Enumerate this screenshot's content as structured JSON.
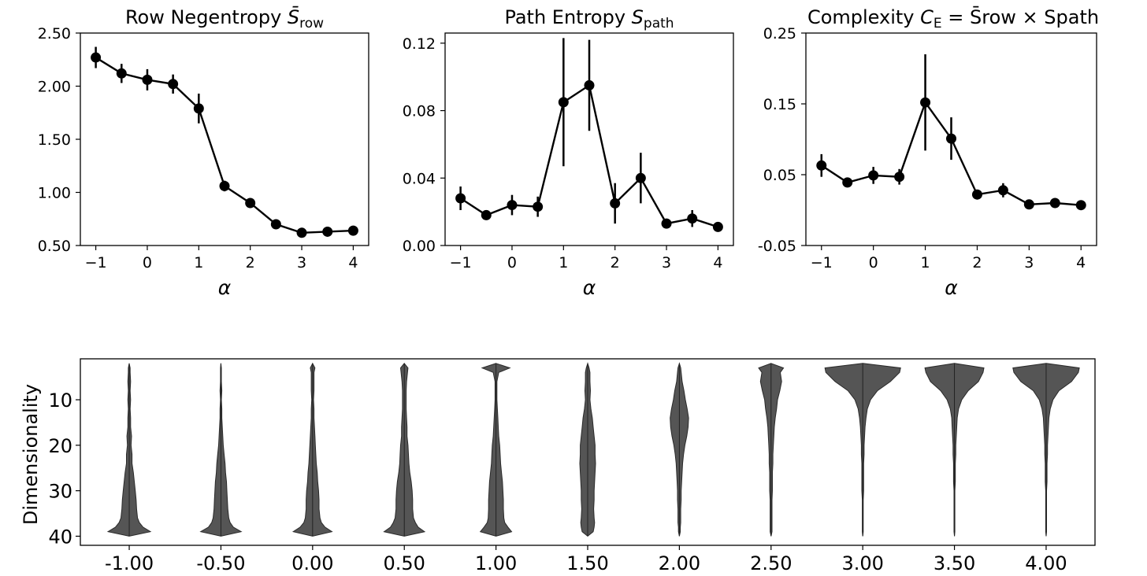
{
  "chart_data": [
    {
      "type": "line",
      "title": {
        "pre": "Row Negentropy ",
        "sym": "S̄",
        "sub": "row",
        "post": ""
      },
      "xlabel": "α",
      "x": [
        -1,
        -0.5,
        0,
        0.5,
        1,
        1.5,
        2,
        2.5,
        3,
        3.5,
        4
      ],
      "y": [
        2.27,
        2.12,
        2.06,
        2.02,
        1.79,
        1.06,
        0.9,
        0.7,
        0.62,
        0.63,
        0.64
      ],
      "err": [
        0.1,
        0.09,
        0.1,
        0.09,
        0.14,
        0.05,
        0.03,
        0.03,
        0.02,
        0.02,
        0.02
      ],
      "xlim": [
        -1.3,
        4.3
      ],
      "ylim": [
        0.5,
        2.5
      ],
      "xticks": [
        -1,
        0,
        1,
        2,
        3,
        4
      ],
      "xtick_labels": [
        "−1",
        "0",
        "1",
        "2",
        "3",
        "4"
      ],
      "yticks": [
        0.5,
        1.0,
        1.5,
        2.0,
        2.5
      ],
      "ytick_labels": [
        "0.50",
        "1.00",
        "1.50",
        "2.00",
        "2.50"
      ]
    },
    {
      "type": "line",
      "title": {
        "pre": "Path Entropy ",
        "sym": "S",
        "sub": "path",
        "post": ""
      },
      "xlabel": "α",
      "x": [
        -1,
        -0.5,
        0,
        0.5,
        1,
        1.5,
        2,
        2.5,
        3,
        3.5,
        4
      ],
      "y": [
        0.028,
        0.018,
        0.024,
        0.023,
        0.085,
        0.095,
        0.025,
        0.04,
        0.013,
        0.016,
        0.011
      ],
      "err": [
        0.007,
        0.002,
        0.006,
        0.006,
        0.038,
        0.027,
        0.012,
        0.015,
        0.002,
        0.005,
        0.002
      ],
      "xlim": [
        -1.3,
        4.3
      ],
      "ylim": [
        0.0,
        0.126
      ],
      "xticks": [
        -1,
        0,
        1,
        2,
        3,
        4
      ],
      "xtick_labels": [
        "−1",
        "0",
        "1",
        "2",
        "3",
        "4"
      ],
      "yticks": [
        0.0,
        0.04,
        0.08,
        0.12
      ],
      "ytick_labels": [
        "0.00",
        "0.04",
        "0.08",
        "0.12"
      ]
    },
    {
      "type": "line",
      "title": {
        "pre": "Complexity ",
        "sym": "C",
        "sub": "E",
        "post": " = S̄row × Spath"
      },
      "xlabel": "α",
      "x": [
        -1,
        -0.5,
        0,
        0.5,
        1,
        1.5,
        2,
        2.5,
        3,
        3.5,
        4
      ],
      "y": [
        0.063,
        0.039,
        0.049,
        0.047,
        0.152,
        0.101,
        0.022,
        0.028,
        0.008,
        0.01,
        0.007
      ],
      "err": [
        0.016,
        0.004,
        0.012,
        0.011,
        0.068,
        0.03,
        0.006,
        0.01,
        0.002,
        0.003,
        0.002
      ],
      "xlim": [
        -1.3,
        4.3
      ],
      "ylim": [
        -0.05,
        0.25
      ],
      "xticks": [
        -1,
        0,
        1,
        2,
        3,
        4
      ],
      "xtick_labels": [
        "−1",
        "0",
        "1",
        "2",
        "3",
        "4"
      ],
      "yticks": [
        -0.05,
        0.05,
        0.15,
        0.25
      ],
      "ytick_labels": [
        "-0.05",
        "0.05",
        "0.15",
        "0.25"
      ]
    },
    {
      "type": "violin",
      "ylabel": "Dimensionality",
      "y_inverted": true,
      "ylim": [
        42,
        1
      ],
      "yticks": [
        10,
        20,
        30,
        40
      ],
      "categories": [
        "-1.00",
        "-0.50",
        "0.00",
        "0.50",
        "1.00",
        "1.50",
        "2.00",
        "2.50",
        "3.00",
        "3.50",
        "4.00"
      ],
      "dim_grid": [
        2,
        3,
        4,
        6,
        8,
        10,
        12,
        14,
        16,
        18,
        20,
        22,
        24,
        26,
        28,
        30,
        32,
        34,
        36,
        37,
        38,
        39,
        40
      ],
      "widths": [
        [
          0.0,
          0.02,
          0.02,
          0.03,
          0.02,
          0.03,
          0.02,
          0.03,
          0.03,
          0.05,
          0.04,
          0.06,
          0.06,
          0.09,
          0.11,
          0.13,
          0.15,
          0.16,
          0.18,
          0.22,
          0.3,
          0.46,
          0.0
        ],
        [
          0.0,
          0.01,
          0.01,
          0.01,
          0.02,
          0.01,
          0.02,
          0.02,
          0.03,
          0.04,
          0.05,
          0.07,
          0.09,
          0.1,
          0.12,
          0.13,
          0.14,
          0.15,
          0.17,
          0.2,
          0.27,
          0.44,
          0.0
        ],
        [
          0.0,
          0.05,
          0.03,
          0.03,
          0.03,
          0.02,
          0.03,
          0.03,
          0.04,
          0.05,
          0.06,
          0.07,
          0.08,
          0.1,
          0.11,
          0.13,
          0.14,
          0.14,
          0.16,
          0.19,
          0.27,
          0.42,
          0.0
        ],
        [
          0.0,
          0.08,
          0.07,
          0.05,
          0.04,
          0.04,
          0.04,
          0.05,
          0.06,
          0.06,
          0.08,
          0.09,
          0.1,
          0.12,
          0.15,
          0.17,
          0.18,
          0.18,
          0.2,
          0.24,
          0.3,
          0.44,
          0.0
        ],
        [
          0.0,
          0.3,
          0.06,
          0.02,
          0.02,
          0.02,
          0.03,
          0.04,
          0.05,
          0.06,
          0.08,
          0.09,
          0.1,
          0.12,
          0.14,
          0.15,
          0.16,
          0.16,
          0.17,
          0.19,
          0.26,
          0.34,
          0.0
        ],
        [
          0.0,
          0.03,
          0.05,
          0.05,
          0.06,
          0.05,
          0.07,
          0.1,
          0.12,
          0.14,
          0.16,
          0.16,
          0.17,
          0.16,
          0.15,
          0.14,
          0.14,
          0.13,
          0.14,
          0.15,
          0.14,
          0.12,
          0.0
        ],
        [
          0.0,
          0.03,
          0.04,
          0.06,
          0.1,
          0.13,
          0.17,
          0.2,
          0.19,
          0.16,
          0.12,
          0.09,
          0.07,
          0.06,
          0.05,
          0.04,
          0.04,
          0.03,
          0.03,
          0.03,
          0.02,
          0.02,
          0.0
        ],
        [
          0.0,
          0.27,
          0.2,
          0.23,
          0.19,
          0.14,
          0.12,
          0.09,
          0.07,
          0.06,
          0.05,
          0.04,
          0.04,
          0.03,
          0.03,
          0.03,
          0.02,
          0.02,
          0.02,
          0.02,
          0.02,
          0.02,
          0.0
        ],
        [
          0.0,
          0.82,
          0.8,
          0.6,
          0.32,
          0.17,
          0.1,
          0.07,
          0.05,
          0.04,
          0.03,
          0.03,
          0.02,
          0.02,
          0.02,
          0.02,
          0.01,
          0.01,
          0.01,
          0.01,
          0.01,
          0.01,
          0.0
        ],
        [
          0.0,
          0.64,
          0.62,
          0.52,
          0.3,
          0.16,
          0.09,
          0.06,
          0.05,
          0.04,
          0.03,
          0.03,
          0.02,
          0.02,
          0.02,
          0.01,
          0.01,
          0.01,
          0.01,
          0.01,
          0.01,
          0.01,
          0.0
        ],
        [
          0.0,
          0.72,
          0.7,
          0.55,
          0.28,
          0.15,
          0.09,
          0.06,
          0.05,
          0.04,
          0.03,
          0.03,
          0.02,
          0.02,
          0.02,
          0.01,
          0.01,
          0.01,
          0.01,
          0.01,
          0.01,
          0.01,
          0.0
        ]
      ],
      "fill_color": "#555555"
    }
  ]
}
